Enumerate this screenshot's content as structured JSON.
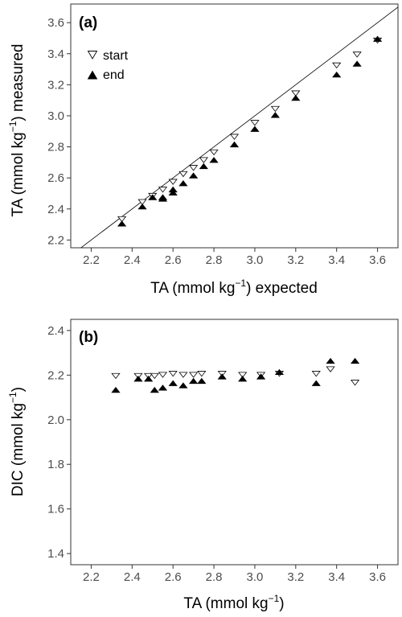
{
  "chart_data": [
    {
      "type": "scatter",
      "panel_label": "(a)",
      "xlabel": {
        "pre": "TA (mmol kg",
        "sup": "−1",
        "post": ") expected"
      },
      "ylabel": {
        "pre": "TA (mmol kg",
        "sup": "−1",
        "post": ") measured"
      },
      "xlim": [
        2.1,
        3.7
      ],
      "ylim": [
        2.15,
        3.72
      ],
      "xticks": [
        "2.2",
        "2.4",
        "2.6",
        "2.8",
        "3.0",
        "3.2",
        "3.4",
        "3.6"
      ],
      "yticks": [
        "2.2",
        "2.4",
        "2.6",
        "2.8",
        "3.0",
        "3.2",
        "3.4",
        "3.6"
      ],
      "reference_line": "1:1",
      "legend": {
        "position": "top-left",
        "entries": [
          "start",
          "end"
        ]
      },
      "series": [
        {
          "name": "start",
          "marker": "open-down-triangle",
          "x": [
            2.35,
            2.45,
            2.5,
            2.55,
            2.6,
            2.65,
            2.7,
            2.75,
            2.8,
            2.9,
            3.0,
            3.1,
            3.2,
            3.4,
            3.5,
            3.6
          ],
          "y": [
            2.34,
            2.45,
            2.49,
            2.53,
            2.58,
            2.63,
            2.67,
            2.72,
            2.77,
            2.87,
            2.96,
            3.05,
            3.15,
            3.33,
            3.4,
            3.49
          ]
        },
        {
          "name": "end",
          "marker": "filled-up-triangle",
          "x": [
            2.35,
            2.45,
            2.5,
            2.55,
            2.55,
            2.6,
            2.6,
            2.65,
            2.7,
            2.75,
            2.8,
            2.9,
            3.0,
            3.1,
            3.2,
            3.4,
            3.5,
            3.6
          ],
          "y": [
            2.3,
            2.41,
            2.47,
            2.46,
            2.47,
            2.5,
            2.52,
            2.56,
            2.61,
            2.67,
            2.71,
            2.81,
            2.91,
            3.0,
            3.11,
            3.26,
            3.33,
            3.49
          ]
        }
      ]
    },
    {
      "type": "scatter",
      "panel_label": "(b)",
      "xlabel": {
        "pre": "TA (mmol kg",
        "sup": "−1",
        "post": ")"
      },
      "ylabel": {
        "pre": "DIC (mmol kg",
        "sup": "−1",
        "post": ")"
      },
      "xlim": [
        2.1,
        3.7
      ],
      "ylim": [
        1.35,
        2.45
      ],
      "xticks": [
        "2.2",
        "2.4",
        "2.6",
        "2.8",
        "3.0",
        "3.2",
        "3.4",
        "3.6"
      ],
      "yticks": [
        "1.4",
        "1.6",
        "1.8",
        "2.0",
        "2.2",
        "2.4"
      ],
      "series": [
        {
          "marker": "open-down-triangle",
          "x": [
            2.32,
            2.43,
            2.48,
            2.51,
            2.55,
            2.6,
            2.65,
            2.7,
            2.74,
            2.84,
            2.94,
            3.03,
            3.12,
            3.3,
            3.37,
            3.49
          ],
          "y": [
            2.2,
            2.2,
            2.2,
            2.2,
            2.205,
            2.21,
            2.205,
            2.205,
            2.21,
            2.21,
            2.205,
            2.205,
            2.21,
            2.21,
            2.23,
            2.17
          ]
        },
        {
          "marker": "filled-up-triangle",
          "x": [
            2.32,
            2.43,
            2.48,
            2.51,
            2.55,
            2.6,
            2.65,
            2.7,
            2.74,
            2.84,
            2.94,
            3.03,
            3.12,
            3.3,
            3.37,
            3.49
          ],
          "y": [
            2.13,
            2.18,
            2.18,
            2.13,
            2.14,
            2.16,
            2.15,
            2.17,
            2.17,
            2.19,
            2.18,
            2.19,
            2.21,
            2.16,
            2.26,
            2.26
          ]
        }
      ]
    }
  ]
}
